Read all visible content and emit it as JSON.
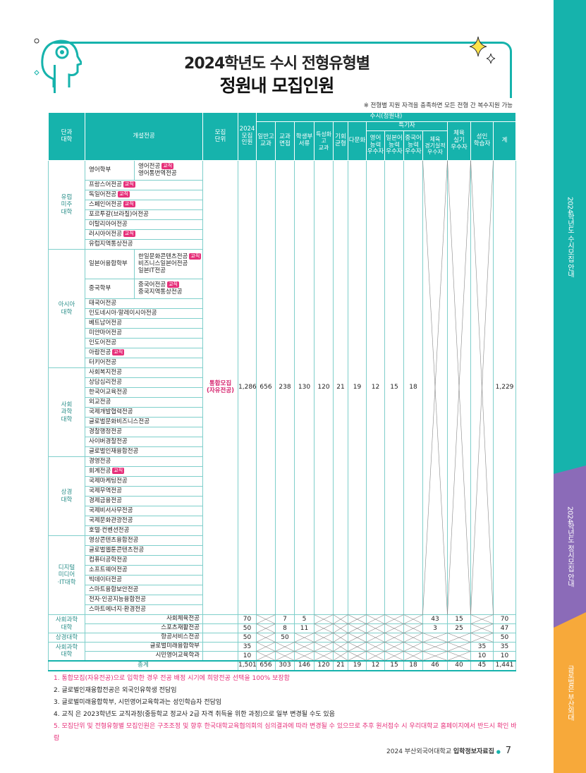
{
  "sidebar": {
    "tabs": [
      "2024학년도 수시모집 안내",
      "2024학년도 정시모집 안내",
      "글로벌은 부산외대"
    ]
  },
  "title": {
    "line1": "2024학년도 수시 전형유형별",
    "line2": "정원내 모집인원"
  },
  "note": "※ 전형별 지원 자격을 충족하면 모든 전형 간 복수지원 가능",
  "badge": "교직",
  "table": {
    "headers": {
      "college": "단과\n대학",
      "major": "개설전공",
      "unit": "모집\n단위",
      "quota": "2024\n모집\n인원",
      "susi": "수시(정원내)",
      "teuk": "특기자",
      "general_subject": "일반고\n교과",
      "interview": "교과\n면접",
      "student_record": "학생부\n서류",
      "special_high": "특성화고\n교과",
      "balance": "기회\n균형",
      "multicultural": "다문화",
      "english": "영어\n능력\n우수자",
      "japanese": "일본어\n능력\n우수자",
      "chinese": "중국어\n능력\n우수자",
      "sports_record": "체육\n경기실적\n우수자",
      "sports_practical": "체육\n실기\n우수자",
      "adult": "성인\n학습자",
      "total": "계"
    },
    "colleges": [
      {
        "name": "유럽\n미주\n대학"
      },
      {
        "name": "아시아\n대학"
      },
      {
        "name": "사회\n과학\n대학"
      },
      {
        "name": "상경\n대학"
      },
      {
        "name": "디지털\n미디어\n·IT대학"
      }
    ],
    "rows": [
      {
        "major": "영어학부",
        "sub": [
          "영어전공",
          "영어통번역전공"
        ],
        "sub_badge": [
          true,
          false
        ]
      },
      {
        "major": "프랑스어전공",
        "badge": true
      },
      {
        "major": "독일어전공",
        "badge": true
      },
      {
        "major": "스페인어전공",
        "badge": true
      },
      {
        "major": "포르투갈(브라질)어전공",
        "badge": false
      },
      {
        "major": "이탈리아어전공",
        "badge": false
      },
      {
        "major": "러시아어전공",
        "badge": true
      },
      {
        "major": "유럽지역통상전공",
        "badge": false
      },
      {
        "major": "일본어융합학부",
        "sub": [
          "한일문화콘텐츠전공",
          "비즈니스일본어전공",
          "일본IT전공"
        ],
        "sub_badge": [
          true,
          false,
          false
        ]
      },
      {
        "major": "중국학부",
        "sub": [
          "중국어전공",
          "중국지역통상전공"
        ],
        "sub_badge": [
          true,
          false
        ]
      },
      {
        "major": "태국어전공",
        "badge": false
      },
      {
        "major": "인도네시아·말레이시아전공",
        "badge": false
      },
      {
        "major": "베트남어전공",
        "badge": false
      },
      {
        "major": "미얀마어전공",
        "badge": false
      },
      {
        "major": "인도어전공",
        "badge": false
      },
      {
        "major": "아랍전공",
        "badge": true
      },
      {
        "major": "터키어전공",
        "badge": false
      },
      {
        "major": "사회복지전공",
        "badge": false
      },
      {
        "major": "상담심리전공",
        "badge": false
      },
      {
        "major": "한국어교육전공",
        "badge": false
      },
      {
        "major": "외교전공",
        "badge": false
      },
      {
        "major": "국제개발협력전공",
        "badge": false
      },
      {
        "major": "글로벌문화비즈니스전공",
        "badge": false
      },
      {
        "major": "경찰행정전공",
        "badge": false
      },
      {
        "major": "사이버경찰전공",
        "badge": false
      },
      {
        "major": "글로벌인재융합전공",
        "badge": false
      },
      {
        "major": "경영전공",
        "badge": false
      },
      {
        "major": "회계전공",
        "badge": true
      },
      {
        "major": "국제마케팅전공",
        "badge": false
      },
      {
        "major": "국제무역전공",
        "badge": false
      },
      {
        "major": "경제금융전공",
        "badge": false
      },
      {
        "major": "국제비서사무전공",
        "badge": false
      },
      {
        "major": "국제문화관광전공",
        "badge": false
      },
      {
        "major": "호텔·컨벤션전공",
        "badge": false
      },
      {
        "major": "영상콘텐츠융합전공",
        "badge": false
      },
      {
        "major": "글로벌웹툰콘텐츠전공",
        "badge": false
      },
      {
        "major": "컴퓨터공학전공",
        "badge": false
      },
      {
        "major": "소프트웨어전공",
        "badge": false
      },
      {
        "major": "빅데이터전공",
        "badge": false
      },
      {
        "major": "스마트융합보안전공",
        "badge": false
      },
      {
        "major": "전자·인공지능융합전공",
        "badge": false
      },
      {
        "major": "스마트에너지·환경전공",
        "badge": false
      }
    ],
    "merged": {
      "unit": "통합모집\n(자유전공)",
      "quota": "1,286",
      "general_subject": "656",
      "interview": "238",
      "student_record": "130",
      "special_high": "120",
      "balance": "21",
      "multicultural": "19",
      "english": "12",
      "japanese": "15",
      "chinese": "18",
      "total": "1,229"
    },
    "lower_rows": [
      {
        "college": "사회과학\n대학",
        "major": "사회체육전공",
        "quota": "70",
        "interview": "7",
        "student_record": "5",
        "sports_record": "43",
        "sports_practical": "15",
        "total": "70"
      },
      {
        "college": "",
        "major": "스포츠재활전공",
        "quota": "50",
        "interview": "8",
        "student_record": "11",
        "sports_record": "3",
        "sports_practical": "25",
        "total": "47"
      },
      {
        "college": "상경대학",
        "major": "항공서비스전공",
        "quota": "50",
        "interview": "50",
        "total": "50"
      },
      {
        "college": "사회과학\n대학",
        "major": "글로벌미래융합학부",
        "quota": "35",
        "adult": "35",
        "total": "35"
      },
      {
        "college": "",
        "major": "시민영어교육학과",
        "quota": "10",
        "adult": "10",
        "total": "10"
      }
    ],
    "total_row": {
      "label": "총계",
      "values": [
        "1,501",
        "656",
        "303",
        "146",
        "120",
        "21",
        "19",
        "12",
        "15",
        "18",
        "46",
        "40",
        "45",
        "1,441"
      ]
    }
  },
  "footnotes": [
    "1. 통합모집(자유전공)으로 입학한 경우 전공 배정 시기에 희망전공 선택을 100% 보장함",
    "2. 글로벌인재융합전공은 외국인유학생 전담임",
    "3. 글로벌미래융합학부, 시민영어교육학과는 성인학습자 전담임",
    "4. 교직 은 2023학년도 교직과정(중등학교 정교사 2급 자격 취득을 위한 과정)으로 일부 변경될 수도 있음",
    "5. 모집단위 및 전형유형별 모집인원은 구조조정 및 향후 한국대학교육협의회의 심의결과에 따라 변경될 수 있으므로 추후 원서접수 시 우리대학교 홈페이지에서 반드시 확인 바람"
  ],
  "footer": {
    "text": "2024 부산외국어대학교 ",
    "bold": "입학정보자료집",
    "bullet": "●",
    "page": "7"
  },
  "colors": {
    "teal": "#16b3ac",
    "purple": "#8b6bb8",
    "orange": "#f7a93a",
    "pink": "#e6307a"
  }
}
